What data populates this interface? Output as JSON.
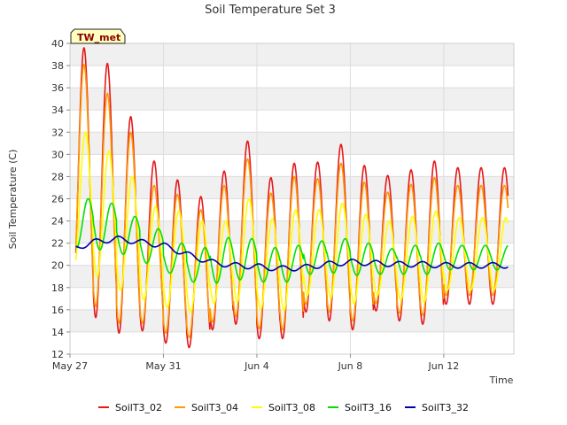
{
  "chart_data": {
    "type": "line",
    "title": "Soil Temperature Set 3",
    "xlabel": "Time",
    "ylabel": "Soil Temperature (C)",
    "badge": "TW_met",
    "ylim": [
      12,
      40
    ],
    "xlim": [
      "2023-05-27",
      "2023-06-15"
    ],
    "yticks": [
      12,
      14,
      16,
      18,
      20,
      22,
      24,
      26,
      28,
      30,
      32,
      34,
      36,
      38,
      40
    ],
    "xticks": [
      {
        "date": "2023-05-27",
        "label": "May 27"
      },
      {
        "date": "2023-05-31",
        "label": "May 31"
      },
      {
        "date": "2023-06-04",
        "label": "Jun 4"
      },
      {
        "date": "2023-06-08",
        "label": "Jun 8"
      },
      {
        "date": "2023-06-12",
        "label": "Jun 12"
      }
    ],
    "grid": true,
    "legend_position": "bottom",
    "series_start": "2023-05-27T06:00",
    "series_end": "2023-06-14T18:00",
    "series": [
      {
        "name": "SoilT3_02",
        "color": "#e41a1c",
        "daily_max": [
          39.6,
          38.2,
          33.4,
          29.4,
          27.7,
          26.2,
          28.5,
          31.2,
          27.9,
          29.2,
          29.3,
          30.9,
          29.0,
          28.1,
          28.6,
          29.4,
          28.8
        ],
        "daily_min": [
          16.3,
          15.3,
          13.9,
          14.1,
          13.0,
          12.6,
          14.2,
          14.7,
          13.4,
          13.4,
          15.8,
          15.0,
          14.2,
          15.9,
          15.0,
          14.7,
          16.5
        ]
      },
      {
        "name": "SoilT3_04",
        "color": "#ff9900",
        "daily_max": [
          38.1,
          35.5,
          32.0,
          27.2,
          26.4,
          25.0,
          27.2,
          29.6,
          26.5,
          28.0,
          27.8,
          29.2,
          27.5,
          26.6,
          27.3,
          27.9,
          27.2
        ],
        "daily_min": [
          17.2,
          16.3,
          14.8,
          14.8,
          13.9,
          13.5,
          14.9,
          15.4,
          14.3,
          14.2,
          16.5,
          15.8,
          15.0,
          16.6,
          15.7,
          15.5,
          17.3
        ]
      },
      {
        "name": "SoilT3_08",
        "color": "#ffff00",
        "daily_max": [
          32.0,
          30.3,
          28.0,
          25.3,
          24.9,
          24.0,
          24.0,
          26.0,
          24.2,
          25.0,
          25.0,
          25.6,
          24.6,
          24.0,
          24.4,
          24.9,
          24.3
        ],
        "daily_min": [
          19.5,
          19.0,
          17.8,
          16.9,
          16.2,
          15.8,
          16.6,
          16.7,
          16.1,
          16.0,
          17.3,
          17.1,
          16.6,
          17.3,
          16.9,
          16.7,
          17.8
        ]
      },
      {
        "name": "SoilT3_16",
        "color": "#00e000",
        "daily_max": [
          26.0,
          25.6,
          24.4,
          23.3,
          22.0,
          21.6,
          22.5,
          22.4,
          21.6,
          21.8,
          22.2,
          22.4,
          22.0,
          21.5,
          21.8,
          22.0,
          21.8
        ],
        "daily_min": [
          21.6,
          21.4,
          21.0,
          20.2,
          19.3,
          18.5,
          18.4,
          18.7,
          18.5,
          18.5,
          19.2,
          19.3,
          19.1,
          19.2,
          19.2,
          19.2,
          19.6
        ]
      },
      {
        "name": "SoilT3_32",
        "color": "#0000aa",
        "daily_mean": [
          21.4,
          22.1,
          22.4,
          22.1,
          21.8,
          21.0,
          20.3,
          20.0,
          19.9,
          19.7,
          19.8,
          20.1,
          20.3,
          20.2,
          20.1,
          20.1,
          20.0
        ],
        "daily_amplitude": 0.25
      }
    ]
  }
}
